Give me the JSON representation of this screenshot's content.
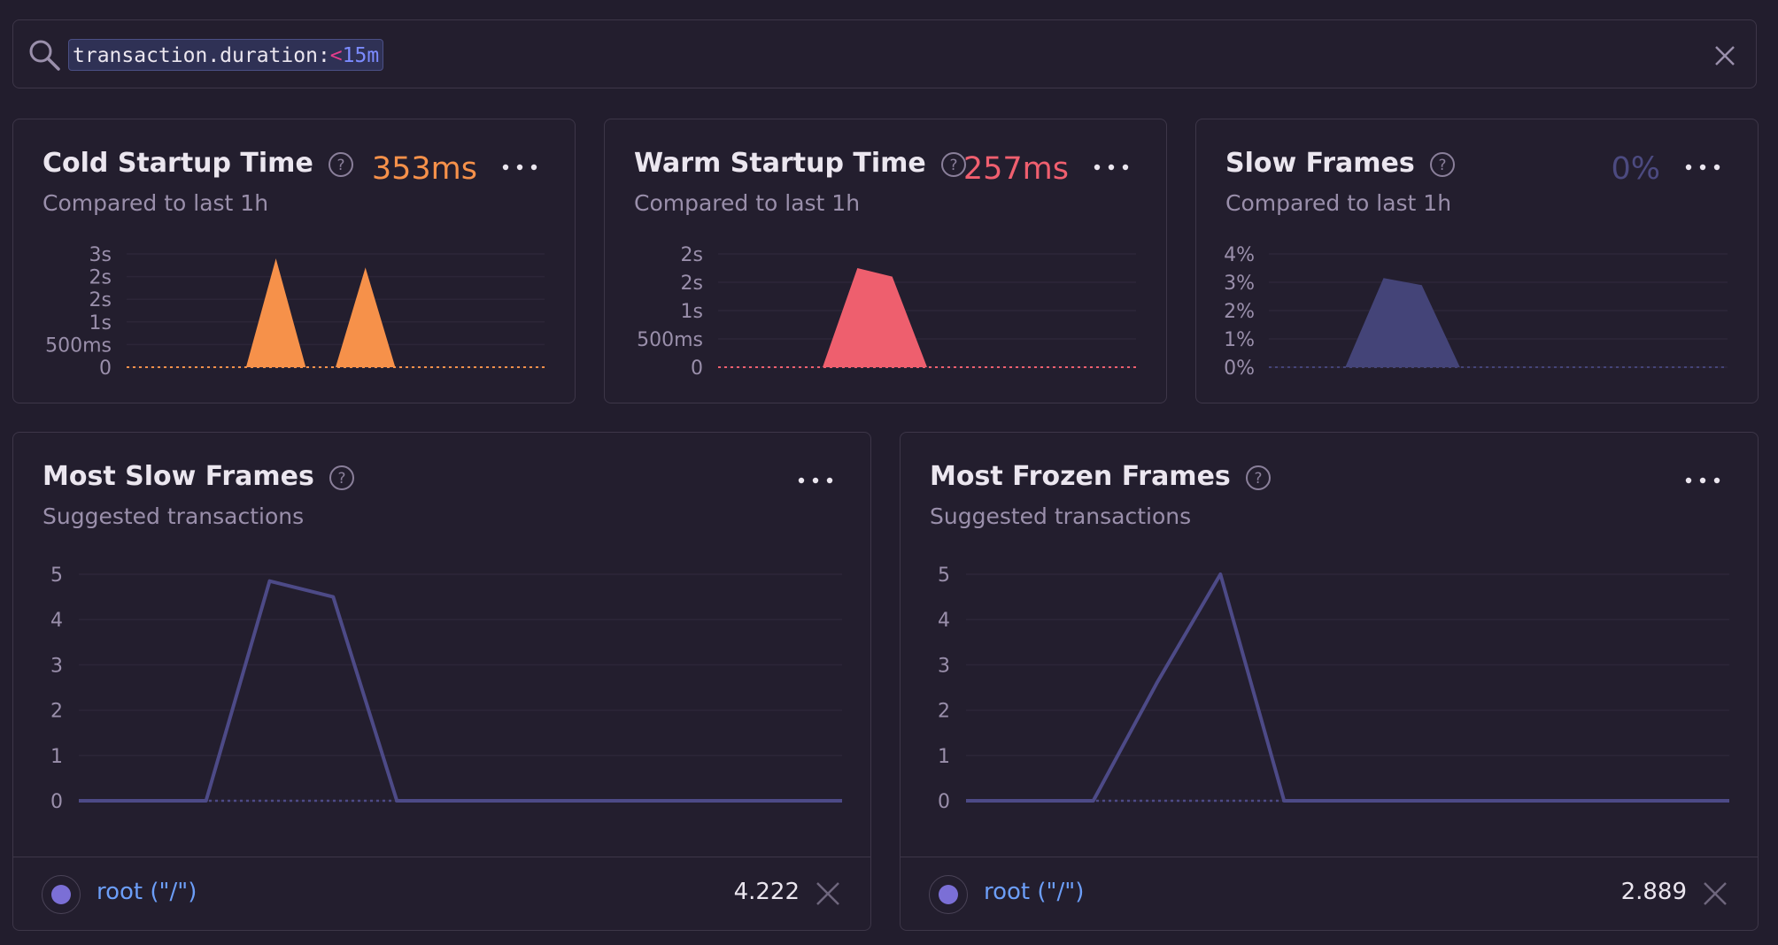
{
  "search": {
    "key": "transaction.duration:",
    "operator": "<",
    "value": "15m"
  },
  "cards": [
    {
      "title": "Cold Startup Time",
      "subtitle": "Compared to last 1h",
      "value": "353ms",
      "value_color": "#f6914a",
      "chart_data": {
        "type": "area",
        "color": "#f6914a",
        "y_ticks": [
          "3s",
          "2s",
          "2s",
          "1s",
          "500ms",
          "0"
        ],
        "y_max": 2.5,
        "x": [
          0,
          1,
          2,
          3,
          4,
          5,
          6,
          7,
          8,
          9,
          10,
          11,
          12,
          13,
          14
        ],
        "values": [
          0,
          0,
          0,
          0,
          0,
          2.4,
          0,
          0,
          2.2,
          0,
          0,
          0,
          0,
          0,
          0
        ]
      }
    },
    {
      "title": "Warm Startup Time",
      "subtitle": "Compared to last 1h",
      "value": "257ms",
      "value_color": "#f05f6f",
      "chart_data": {
        "type": "area",
        "color": "#ee5f6e",
        "y_ticks": [
          "2s",
          "2s",
          "1s",
          "500ms",
          "0"
        ],
        "y_max": 2.0,
        "x": [
          0,
          1,
          2,
          3,
          4,
          5,
          6,
          7,
          8,
          9,
          10,
          11,
          12
        ],
        "values": [
          0,
          0,
          0,
          0,
          1.75,
          1.6,
          0,
          0,
          0,
          0,
          0,
          0,
          0
        ]
      }
    },
    {
      "title": "Slow Frames",
      "subtitle": "Compared to last 1h",
      "value": "0%",
      "value_color": "#4c4a80",
      "chart_data": {
        "type": "area",
        "color": "#444478",
        "y_ticks": [
          "4%",
          "3%",
          "2%",
          "1%",
          "0%"
        ],
        "y_max": 4,
        "x": [
          0,
          1,
          2,
          3,
          4,
          5,
          6,
          7,
          8,
          9,
          10,
          11,
          12
        ],
        "values": [
          0,
          0,
          0,
          3.15,
          2.9,
          0,
          0,
          0,
          0,
          0,
          0,
          0,
          0
        ]
      }
    }
  ],
  "bottom_cards": [
    {
      "title": "Most Slow Frames",
      "subtitle": "Suggested transactions",
      "chart_data": {
        "type": "line",
        "color": "#4d4a87",
        "y_ticks": [
          "5",
          "4",
          "3",
          "2",
          "1",
          "0"
        ],
        "y_max": 5,
        "x": [
          0,
          1,
          2,
          3,
          4,
          5,
          6,
          7,
          8,
          9,
          10,
          11,
          12
        ],
        "values": [
          0,
          0,
          0,
          4.85,
          4.5,
          0,
          0,
          0,
          0,
          0,
          0,
          0,
          0
        ]
      },
      "legend": {
        "name": "root (\"/\")",
        "value": "4.222"
      }
    },
    {
      "title": "Most Frozen Frames",
      "subtitle": "Suggested transactions",
      "chart_data": {
        "type": "line",
        "color": "#4d4a87",
        "y_ticks": [
          "5",
          "4",
          "3",
          "2",
          "1",
          "0"
        ],
        "y_max": 5,
        "x": [
          0,
          1,
          2,
          3,
          4,
          5,
          6,
          7,
          8,
          9,
          10,
          11,
          12
        ],
        "values": [
          0,
          0,
          0,
          2.6,
          5,
          0,
          0,
          0,
          0,
          0,
          0,
          0,
          0
        ]
      },
      "legend": {
        "name": "root (\"/\")",
        "value": "2.889"
      }
    }
  ],
  "icons": {
    "search": "search-icon",
    "clear": "close-icon",
    "help": "help-icon",
    "more": "ellipsis-icon",
    "remove": "close-icon"
  },
  "colors": {
    "background": "#221d2d",
    "border": "#3d3648",
    "link": "#6c9ef8"
  }
}
